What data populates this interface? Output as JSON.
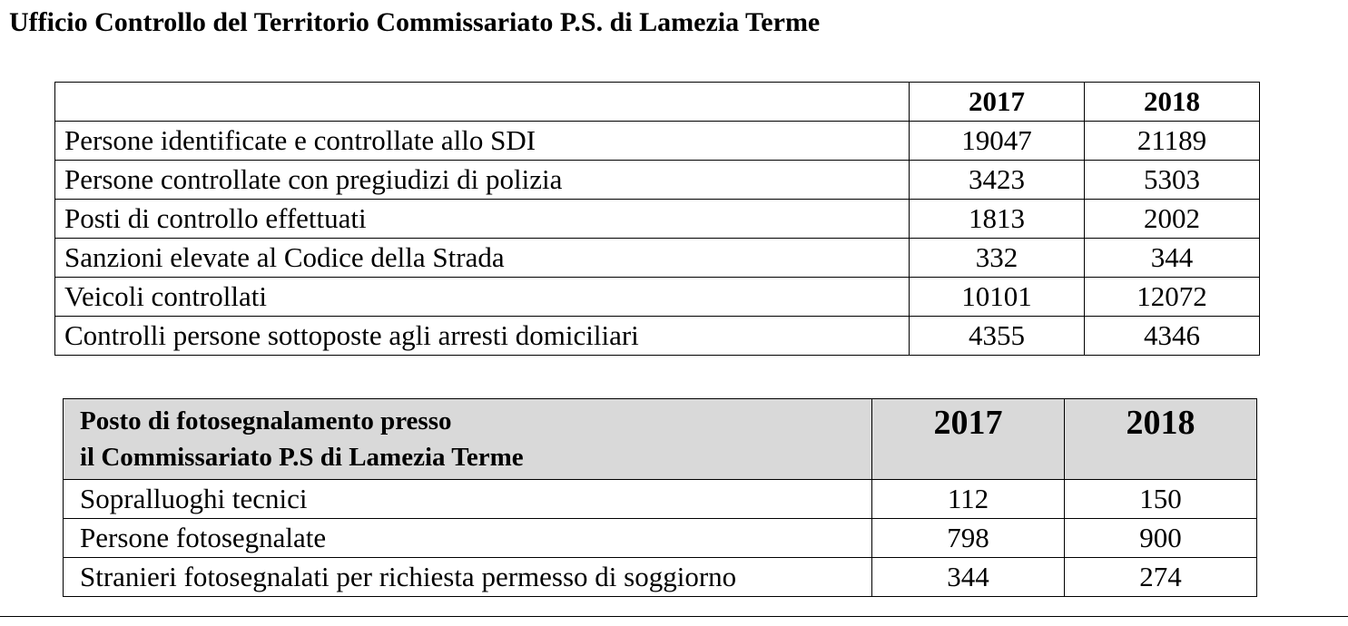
{
  "title": "Ufficio Controllo del Territorio Commissariato P.S. di Lamezia Terme",
  "table1": {
    "years": [
      "2017",
      "2018"
    ],
    "rows": [
      {
        "label": "Persone identificate e controllate allo SDI",
        "v2017": "19047",
        "v2018": "21189"
      },
      {
        "label": "Persone controllate con pregiudizi di polizia",
        "v2017": "3423",
        "v2018": "5303"
      },
      {
        "label": "Posti di controllo effettuati",
        "v2017": "1813",
        "v2018": "2002"
      },
      {
        "label": "Sanzioni elevate al Codice della Strada",
        "v2017": "332",
        "v2018": "344"
      },
      {
        "label": "Veicoli controllati",
        "v2017": "10101",
        "v2018": "12072"
      },
      {
        "label": "Controlli persone sottoposte agli arresti domiciliari",
        "v2017": "4355",
        "v2018": "4346"
      }
    ]
  },
  "table2": {
    "header_line1": "Posto di fotosegnalamento presso",
    "header_line2": "il Commissariato P.S di Lamezia Terme",
    "years": [
      "2017",
      "2018"
    ],
    "rows": [
      {
        "label": "Sopralluoghi tecnici",
        "v2017": "112",
        "v2018": "150"
      },
      {
        "label": "Persone fotosegnalate",
        "v2017": "798",
        "v2018": "900"
      },
      {
        "label": "Stranieri fotosegnalati per richiesta permesso di soggiorno",
        "v2017": "344",
        "v2018": "274"
      }
    ]
  }
}
